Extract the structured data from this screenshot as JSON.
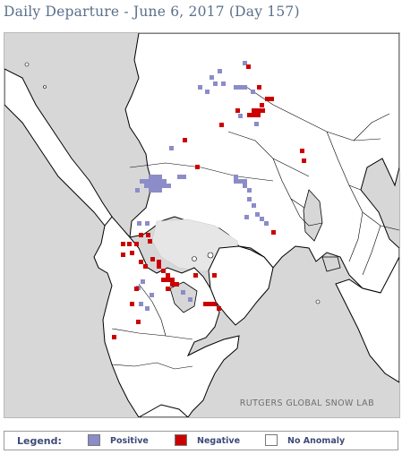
{
  "title": "Daily Departure - June 6, 2017 (Day 157)",
  "credit": "RUTGERS GLOBAL SNOW LAB",
  "legend": {
    "title": "Legend:",
    "items": [
      {
        "label": "Positive",
        "color": "#8c8cc8"
      },
      {
        "label": "Negative",
        "color": "#cc0000"
      },
      {
        "label": "No Anomaly",
        "color": "#ffffff"
      }
    ]
  },
  "colors": {
    "ocean": "#d7d7d7",
    "land": "#ffffff",
    "sea_ice": "#e6e6e6",
    "coastline": "#000000",
    "positive": "#8c8cc8",
    "negative": "#cc0000"
  }
}
